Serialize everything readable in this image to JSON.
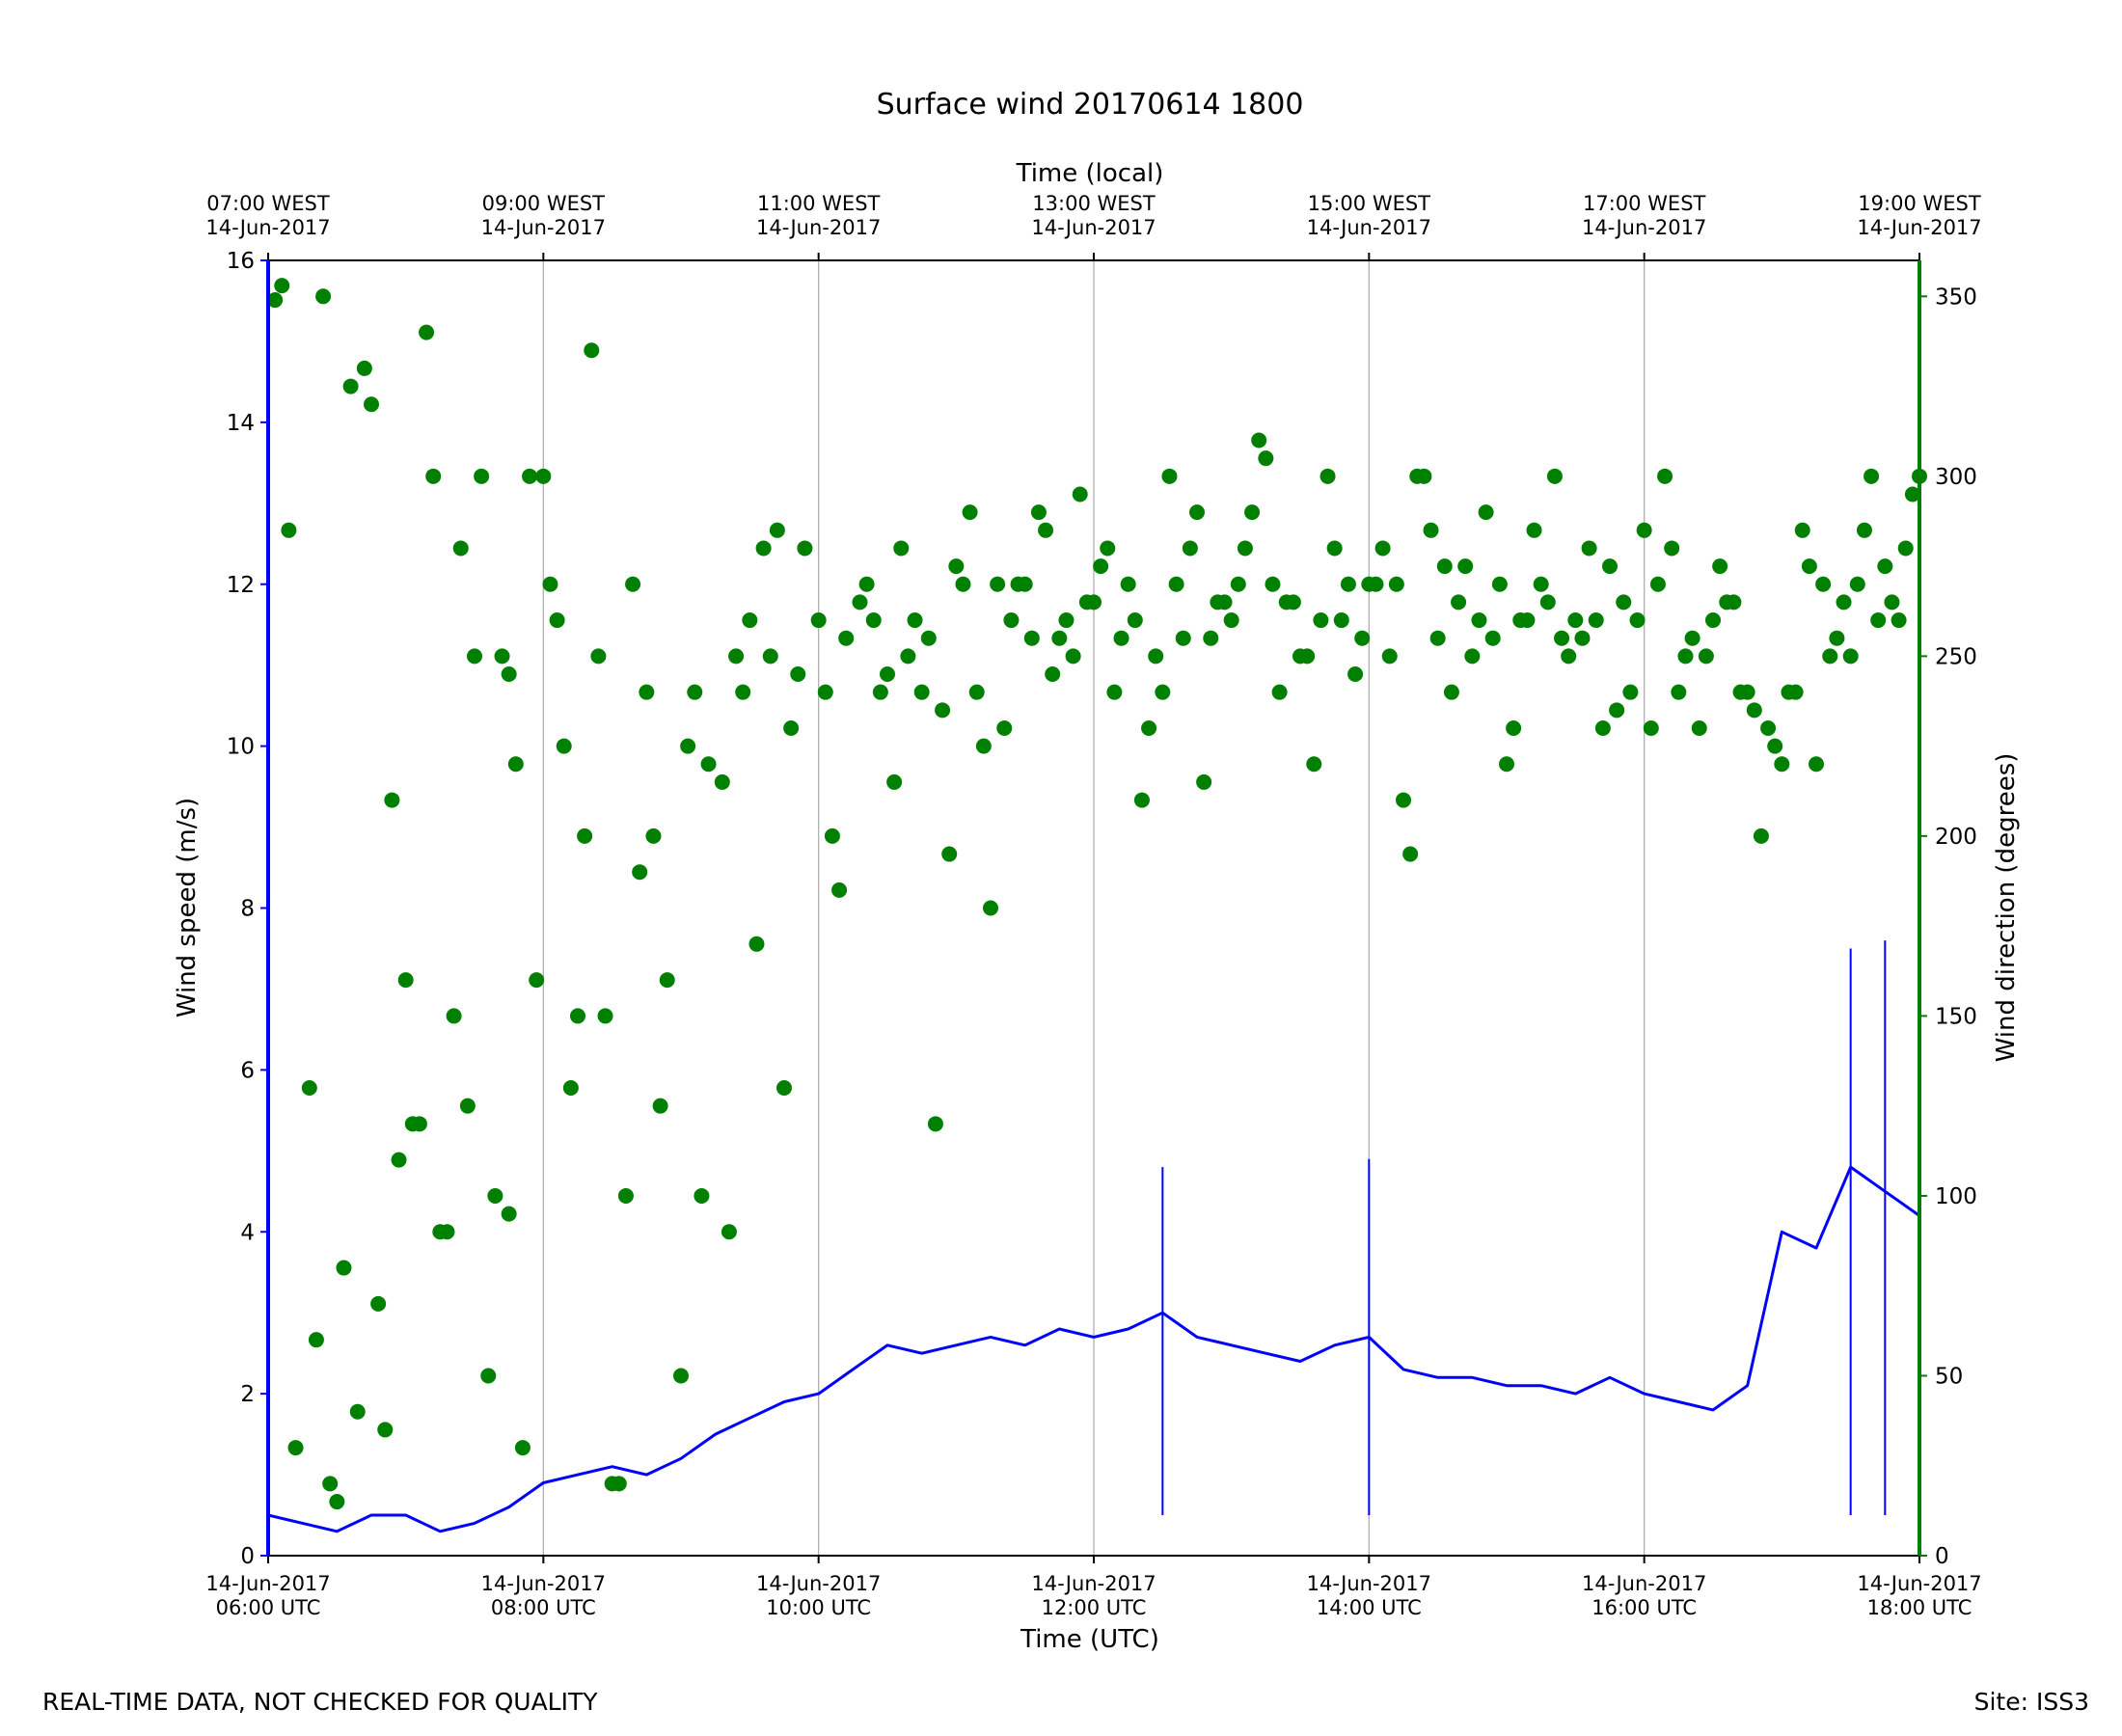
{
  "chart_data": {
    "type": "line+scatter",
    "title": "Surface wind 20170614 1800",
    "xlabel": "Time (UTC)",
    "top_xlabel": "Time (local)",
    "ylabel_left": "Wind speed (m/s)",
    "ylabel_right": "Wind direction (degrees)",
    "x_range_hours_utc": [
      6,
      18
    ],
    "ylim_left": [
      0,
      16
    ],
    "ylim_right": [
      0,
      360
    ],
    "grid": "vertical lines at 2-hour ticks",
    "colors": {
      "speed": "#0000ff",
      "direction": "#008000",
      "grid": "#b0b0b0"
    },
    "bottom_ticks": [
      {
        "hour": 6,
        "line1": "14-Jun-2017",
        "line2": "06:00 UTC"
      },
      {
        "hour": 8,
        "line1": "14-Jun-2017",
        "line2": "08:00 UTC"
      },
      {
        "hour": 10,
        "line1": "14-Jun-2017",
        "line2": "10:00 UTC"
      },
      {
        "hour": 12,
        "line1": "14-Jun-2017",
        "line2": "12:00 UTC"
      },
      {
        "hour": 14,
        "line1": "14-Jun-2017",
        "line2": "14:00 UTC"
      },
      {
        "hour": 16,
        "line1": "14-Jun-2017",
        "line2": "16:00 UTC"
      },
      {
        "hour": 18,
        "line1": "14-Jun-2017",
        "line2": "18:00 UTC"
      }
    ],
    "top_ticks": [
      {
        "hour": 6,
        "line1": "07:00 WEST",
        "line2": "14-Jun-2017"
      },
      {
        "hour": 8,
        "line1": "09:00 WEST",
        "line2": "14-Jun-2017"
      },
      {
        "hour": 10,
        "line1": "11:00 WEST",
        "line2": "14-Jun-2017"
      },
      {
        "hour": 12,
        "line1": "13:00 WEST",
        "line2": "14-Jun-2017"
      },
      {
        "hour": 14,
        "line1": "15:00 WEST",
        "line2": "14-Jun-2017"
      },
      {
        "hour": 16,
        "line1": "17:00 WEST",
        "line2": "14-Jun-2017"
      },
      {
        "hour": 18,
        "line1": "19:00 WEST",
        "line2": "14-Jun-2017"
      }
    ],
    "left_ticks": [
      0,
      2,
      4,
      6,
      8,
      10,
      12,
      14,
      16
    ],
    "right_ticks": [
      0,
      50,
      100,
      150,
      200,
      250,
      300,
      350
    ],
    "series": [
      {
        "name": "Wind speed",
        "kind": "line",
        "x_hours_utc": [
          6.0,
          6.25,
          6.5,
          6.75,
          7.0,
          7.25,
          7.5,
          7.75,
          8.0,
          8.25,
          8.5,
          8.75,
          9.0,
          9.25,
          9.5,
          9.75,
          10.0,
          10.25,
          10.5,
          10.75,
          11.0,
          11.25,
          11.5,
          11.75,
          12.0,
          12.25,
          12.5,
          12.75,
          13.0,
          13.25,
          13.5,
          13.75,
          14.0,
          14.25,
          14.5,
          14.75,
          15.0,
          15.25,
          15.5,
          15.75,
          16.0,
          16.25,
          16.5,
          16.75,
          17.0,
          17.25,
          17.5,
          17.75,
          18.0
        ],
        "values": [
          0.5,
          0.4,
          0.3,
          0.5,
          0.5,
          0.3,
          0.4,
          0.6,
          0.9,
          1.0,
          1.1,
          1.0,
          1.2,
          1.5,
          1.7,
          1.9,
          2.0,
          2.3,
          2.6,
          2.5,
          2.6,
          2.7,
          2.6,
          2.8,
          2.7,
          2.8,
          3.0,
          2.7,
          2.6,
          2.5,
          2.4,
          2.6,
          2.7,
          2.3,
          2.2,
          2.2,
          2.1,
          2.1,
          2.0,
          2.2,
          2.0,
          1.9,
          1.8,
          2.1,
          4.0,
          3.8,
          4.8,
          4.5,
          4.2
        ],
        "peak_markers": [
          {
            "x": 17.75,
            "value": 7.6
          },
          {
            "x": 17.5,
            "value": 7.5
          },
          {
            "x": 14.0,
            "value": 4.9
          },
          {
            "x": 12.5,
            "value": 4.8
          }
        ]
      },
      {
        "name": "Wind direction",
        "kind": "scatter",
        "x_hours_utc": [
          6.05,
          6.1,
          6.2,
          6.3,
          6.35,
          6.4,
          6.5,
          6.55,
          6.6,
          6.7,
          6.75,
          6.8,
          6.9,
          6.95,
          7.0,
          7.1,
          7.15,
          7.2,
          7.3,
          7.35,
          7.4,
          7.5,
          7.55,
          7.6,
          7.7,
          7.75,
          7.8,
          7.85,
          7.9,
          7.95,
          8.05,
          8.1,
          8.15,
          8.25,
          8.3,
          8.35,
          8.4,
          8.45,
          8.5,
          8.6,
          8.65,
          8.7,
          8.75,
          8.8,
          8.9,
          9.0,
          9.05,
          9.1,
          9.2,
          9.3,
          9.4,
          9.5,
          9.55,
          9.6,
          9.7,
          9.8,
          9.85,
          9.9,
          10.0,
          10.05,
          10.1,
          10.2,
          10.3,
          10.4,
          10.5,
          10.6,
          10.7,
          10.8,
          10.9,
          11.0,
          11.1,
          11.2,
          11.3,
          11.4,
          11.5,
          11.6,
          11.7,
          11.8,
          11.9,
          12.0,
          12.1,
          12.2,
          12.3,
          12.4,
          12.5,
          12.6,
          12.7,
          12.8,
          12.9,
          13.0,
          13.1,
          13.2,
          13.3,
          13.4,
          13.5,
          13.6,
          13.7,
          13.8,
          13.9,
          14.0,
          14.1,
          14.2,
          14.3,
          14.4,
          14.5,
          14.6,
          14.7,
          14.8,
          14.9,
          15.0,
          15.1,
          15.2,
          15.3,
          15.4,
          15.5,
          15.6,
          15.7,
          15.8,
          15.9,
          16.0,
          16.1,
          16.2,
          16.3,
          16.4,
          16.5,
          16.6,
          16.7,
          16.8,
          16.9,
          17.0,
          17.1,
          17.2,
          17.3,
          17.4,
          17.5,
          17.6,
          17.7,
          17.8,
          17.9,
          18.0,
          6.15,
          6.45,
          6.65,
          6.85,
          7.05,
          7.25,
          7.45,
          7.65,
          7.75,
          8.0,
          8.2,
          8.55,
          8.85,
          9.15,
          9.35,
          9.45,
          9.65,
          9.75,
          10.15,
          10.35,
          10.45,
          10.55,
          10.65,
          10.75,
          10.85,
          10.95,
          11.05,
          11.15,
          11.25,
          11.35,
          11.45,
          11.55,
          11.65,
          11.75,
          11.85,
          11.95,
          12.05,
          12.15,
          12.25,
          12.35,
          12.45,
          12.55,
          12.65,
          12.75,
          12.85,
          12.95,
          13.05,
          13.15,
          13.25,
          13.35,
          13.45,
          13.55,
          13.65,
          13.75,
          13.85,
          13.95,
          14.05,
          14.15,
          14.25,
          14.35,
          14.45,
          14.55,
          14.65,
          14.75,
          14.85,
          14.95,
          15.05,
          15.15,
          15.25,
          15.35,
          15.45,
          15.55,
          15.65,
          15.75,
          15.85,
          15.95,
          16.05,
          16.15,
          16.25,
          16.35,
          16.45,
          16.55,
          16.65,
          16.75,
          16.85,
          16.95,
          17.05,
          17.15,
          17.25,
          17.35,
          17.45,
          17.55,
          17.65,
          17.75,
          17.85,
          17.95
        ],
        "values": [
          349,
          353,
          30,
          130,
          60,
          350,
          15,
          80,
          325,
          330,
          320,
          70,
          210,
          110,
          160,
          120,
          340,
          300,
          90,
          150,
          280,
          250,
          300,
          50,
          250,
          245,
          220,
          30,
          300,
          160,
          270,
          260,
          225,
          150,
          200,
          335,
          250,
          150,
          20,
          100,
          270,
          190,
          240,
          200,
          160,
          50,
          225,
          240,
          220,
          215,
          250,
          260,
          170,
          280,
          285,
          230,
          245,
          280,
          260,
          240,
          200,
          255,
          265,
          260,
          245,
          280,
          260,
          255,
          235,
          275,
          290,
          225,
          270,
          260,
          270,
          290,
          245,
          260,
          295,
          265,
          280,
          255,
          260,
          230,
          240,
          270,
          280,
          215,
          265,
          260,
          280,
          310,
          270,
          265,
          250,
          220,
          300,
          260,
          245,
          270,
          280,
          270,
          195,
          300,
          255,
          240,
          275,
          260,
          255,
          220,
          260,
          285,
          265,
          255,
          260,
          280,
          230,
          235,
          240,
          285,
          270,
          280,
          250,
          230,
          260,
          265,
          240,
          235,
          230,
          220,
          240,
          275,
          270,
          255,
          250,
          285,
          260,
          265,
          280,
          300,
          285,
          20,
          40,
          35,
          120,
          90,
          125,
          100,
          95,
          300,
          130,
          20,
          125,
          100,
          90,
          240,
          250,
          130,
          185,
          270,
          240,
          215,
          250,
          240,
          120,
          195,
          270,
          240,
          180,
          230,
          270,
          255,
          285,
          255,
          250,
          265,
          275,
          240,
          270,
          210,
          250,
          300,
          255,
          290,
          255,
          265,
          270,
          290,
          305,
          240,
          265,
          250,
          260,
          280,
          270,
          255,
          270,
          250,
          210,
          300,
          285,
          275,
          265,
          250,
          290,
          270,
          230,
          260,
          270,
          300,
          250,
          255,
          260,
          275,
          265,
          260,
          230,
          300,
          240,
          255,
          250,
          275,
          265,
          240,
          200,
          225,
          240,
          285,
          220,
          250,
          265,
          270,
          300,
          275,
          260,
          295
        ]
      }
    ],
    "footer_left": "REAL-TIME DATA, NOT CHECKED FOR QUALITY",
    "footer_right": "Site: ISS3"
  }
}
